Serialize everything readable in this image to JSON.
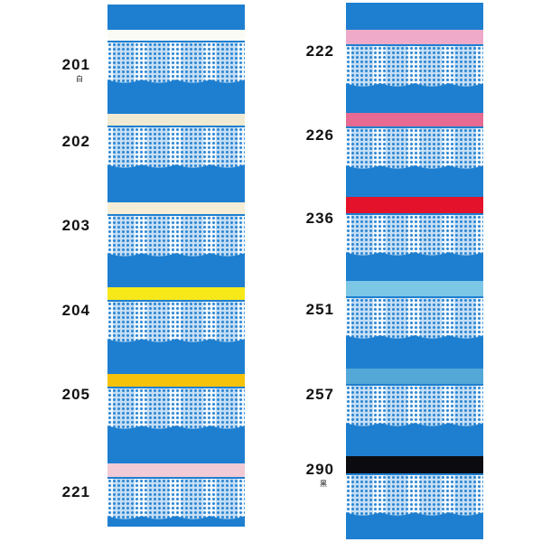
{
  "left": [
    {
      "code": "201",
      "note": "白",
      "color": "#fbfbf6"
    },
    {
      "code": "202",
      "note": "",
      "color": "#f1ead2"
    },
    {
      "code": "203",
      "note": "",
      "color": "#f5edd6"
    },
    {
      "code": "204",
      "note": "",
      "color": "#f7e81a"
    },
    {
      "code": "205",
      "note": "",
      "color": "#f6c20a"
    },
    {
      "code": "221",
      "note": "",
      "color": "#f1cbd6"
    }
  ],
  "right": [
    {
      "code": "222",
      "note": "",
      "color": "#eeaac8"
    },
    {
      "code": "226",
      "note": "",
      "color": "#e66a92"
    },
    {
      "code": "236",
      "note": "",
      "color": "#e4122a"
    },
    {
      "code": "251",
      "note": "",
      "color": "#7cc6e6"
    },
    {
      "code": "257",
      "note": "",
      "color": "#54a8d8"
    },
    {
      "code": "290",
      "note": "黑",
      "color": "#0c0c10"
    }
  ],
  "colors": {
    "background": "#1e7fd0",
    "lace": "#ffffff"
  }
}
